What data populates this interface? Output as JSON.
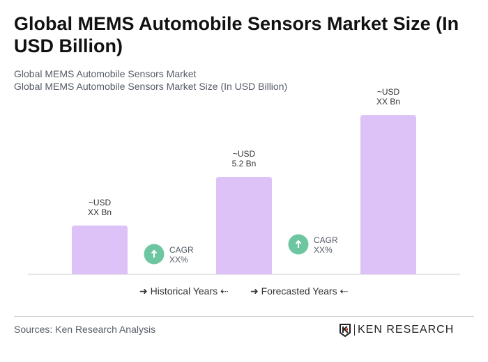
{
  "title": "Global MEMS Automobile Sensors Market Size (In USD Billion)",
  "subtitle1": "Global MEMS Automobile Sensors Market",
  "subtitle2": "Global MEMS Automobile Sensors Market Size (In USD Billion)",
  "chart_data": {
    "type": "bar",
    "categories": [
      "",
      "",
      ""
    ],
    "values": [
      2.6,
      5.2,
      8.5
    ],
    "data_labels": [
      [
        "~USD",
        "XX Bn"
      ],
      [
        "~USD",
        "5.2 Bn"
      ],
      [
        "~USD",
        "XX Bn"
      ]
    ],
    "cagr": [
      {
        "label": "CAGR",
        "value": "XX%"
      },
      {
        "label": "CAGR",
        "value": "XX%"
      }
    ],
    "bar_color": "#dcc2f7",
    "cagr_color": "#6ec6a0",
    "grid": false
  },
  "legend": {
    "historical": "Historical Years",
    "forecasted": "Forecasted Years"
  },
  "sources": "Sources: Ken Research Analysis",
  "logo": "KEN RESEARCH"
}
